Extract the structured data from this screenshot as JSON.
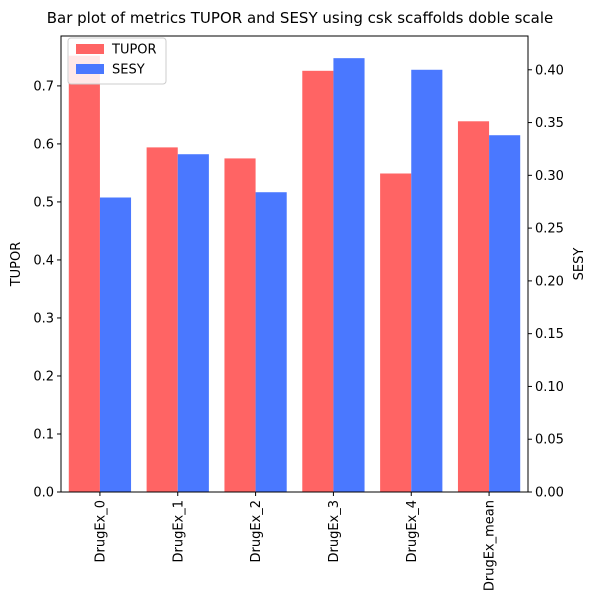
{
  "chart_data": {
    "type": "bar",
    "title": "Bar plot of metrics TUPOR and SESY using csk scaffolds doble scale",
    "categories": [
      "DrugEx_0",
      "DrugEx_1",
      "DrugEx_2",
      "DrugEx_3",
      "DrugEx_4",
      "DrugEx_mean"
    ],
    "series": [
      {
        "name": "TUPOR",
        "axis": "left",
        "color": "#ff6464",
        "values": [
          0.752,
          0.594,
          0.575,
          0.726,
          0.549,
          0.639
        ]
      },
      {
        "name": "SESY",
        "axis": "right",
        "color": "#4a78ff",
        "values": [
          0.279,
          0.32,
          0.284,
          0.411,
          0.4,
          0.338
        ]
      }
    ],
    "left_axis": {
      "label": "TUPOR",
      "ylim": [
        0,
        0.786
      ],
      "ticks": [
        0.0,
        0.1,
        0.2,
        0.3,
        0.4,
        0.5,
        0.6,
        0.7
      ],
      "tick_labels": [
        "0.0",
        "0.1",
        "0.2",
        "0.3",
        "0.4",
        "0.5",
        "0.6",
        "0.7"
      ]
    },
    "right_axis": {
      "label": "SESY",
      "ylim": [
        0,
        0.432
      ],
      "ticks": [
        0.0,
        0.05,
        0.1,
        0.15,
        0.2,
        0.25,
        0.3,
        0.35,
        0.4
      ],
      "tick_labels": [
        "0.00",
        "0.05",
        "0.10",
        "0.15",
        "0.20",
        "0.25",
        "0.30",
        "0.35",
        "0.40"
      ]
    },
    "legend": {
      "placement": "upper-left",
      "entries": [
        "TUPOR",
        "SESY"
      ]
    },
    "grid": false
  }
}
